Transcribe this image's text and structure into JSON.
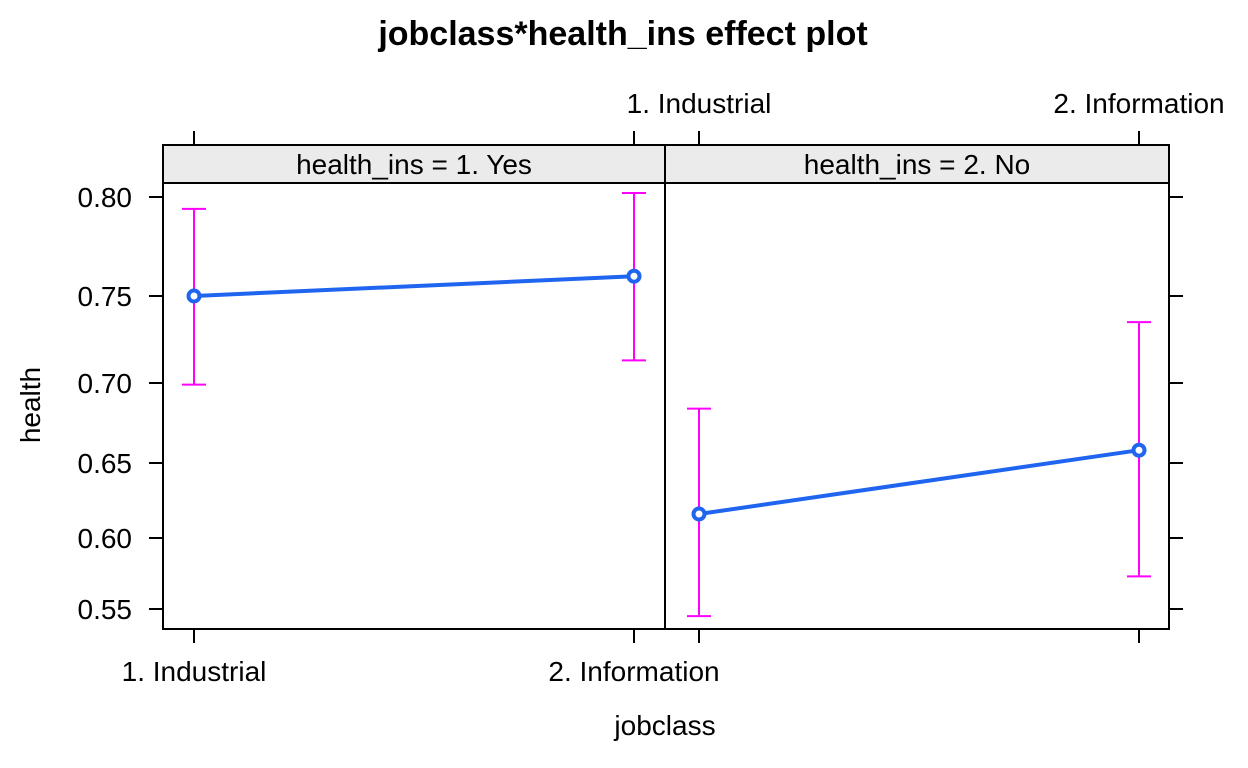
{
  "chart_data": {
    "type": "line",
    "title": "jobclass*health_ins effect plot",
    "xlabel": "jobclass",
    "ylabel": "health",
    "categories": [
      "1. Industrial",
      "2. Information"
    ],
    "y_ticks": [
      "0.55",
      "0.60",
      "0.65",
      "0.70",
      "0.75",
      "0.80"
    ],
    "y_tick_values": [
      0.55,
      0.6,
      0.65,
      0.7,
      0.75,
      0.8
    ],
    "ylim": [
      0.54,
      0.81
    ],
    "panels": [
      {
        "strip": "health_ins = 1. Yes",
        "values": [
          0.75,
          0.76
        ],
        "lower": [
          0.699,
          0.713
        ],
        "upper": [
          0.794,
          0.802
        ]
      },
      {
        "strip": "health_ins = 2. No",
        "values": [
          0.616,
          0.658
        ],
        "lower": [
          0.545,
          0.573
        ],
        "upper": [
          0.684,
          0.735
        ]
      }
    ],
    "colors": {
      "line": "#1f65f0",
      "error_bar": "#ff00ff"
    }
  }
}
